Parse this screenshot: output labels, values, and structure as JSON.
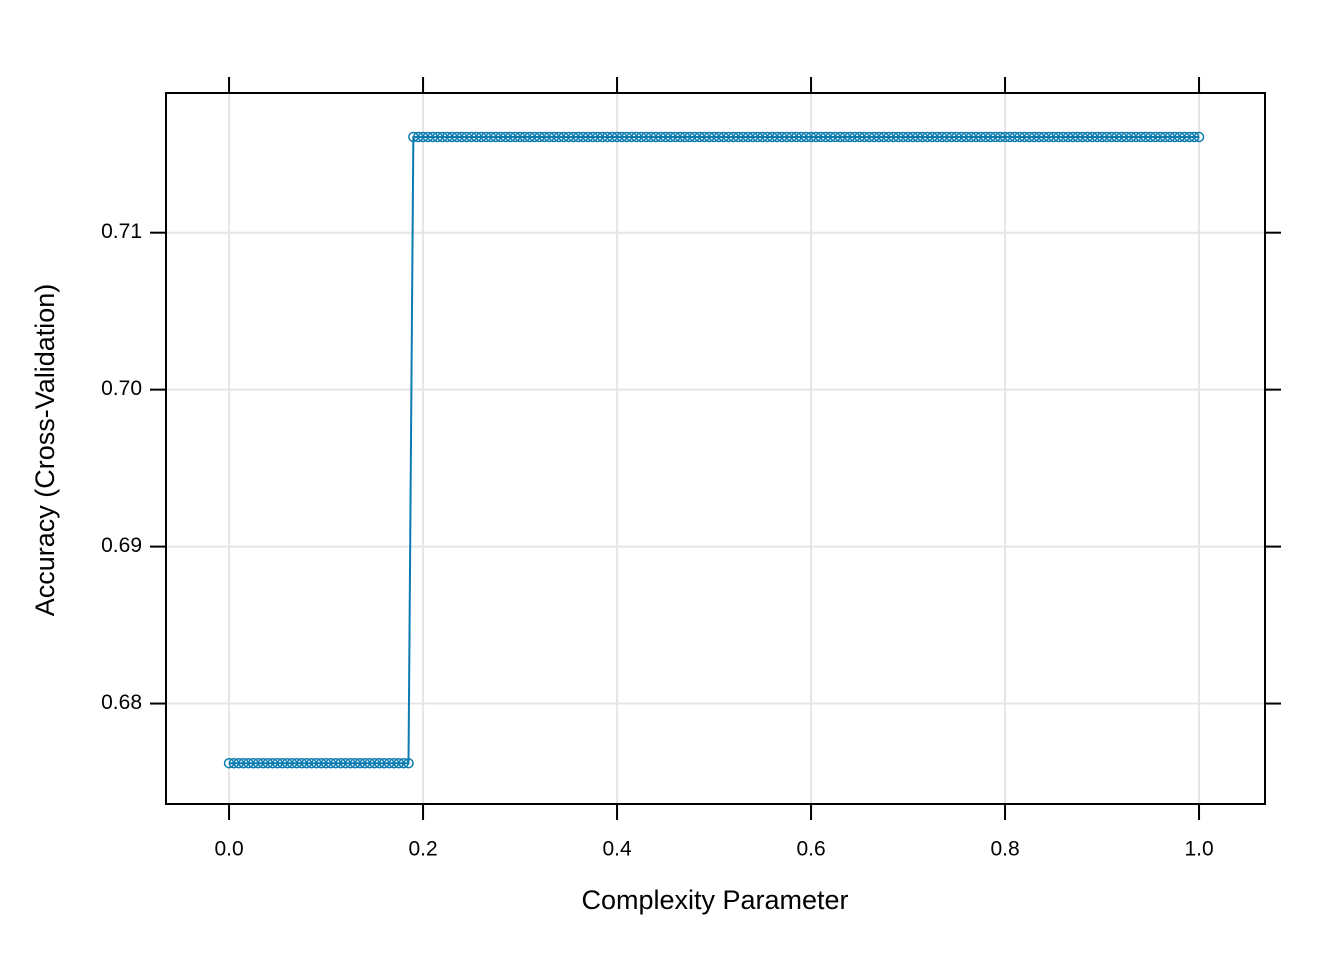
{
  "chart_data": {
    "type": "line",
    "x_label": "Complexity Parameter",
    "y_label": "Accuracy (Cross-Validation)",
    "xlim": [
      -0.065,
      1.068
    ],
    "ylim": [
      0.6736,
      0.7189
    ],
    "xticks": [
      {
        "value": 0,
        "label": "0.0"
      },
      0.2,
      0.4,
      0.6,
      0.8,
      {
        "value": 1,
        "label": "1.0"
      }
    ],
    "yticks": [
      0.68,
      0.69,
      {
        "value": 0.7,
        "label": "0.70"
      },
      0.71
    ],
    "grid": true,
    "series": [
      {
        "color": "#0c7bb0",
        "x": [
          0,
          0.005,
          0.01,
          0.015,
          0.02,
          0.025,
          0.03,
          0.035,
          0.04,
          0.045,
          0.05,
          0.055,
          0.06,
          0.065,
          0.07,
          0.075,
          0.08,
          0.085,
          0.09,
          0.095,
          0.1,
          0.105,
          0.11,
          0.115,
          0.12,
          0.125,
          0.13,
          0.135,
          0.14,
          0.145,
          0.15,
          0.155,
          0.16,
          0.165,
          0.17,
          0.175,
          0.18,
          0.185,
          0.19,
          0.195,
          0.2,
          0.205,
          0.21,
          0.215,
          0.22,
          0.225,
          0.23,
          0.235,
          0.24,
          0.245,
          0.25,
          0.255,
          0.26,
          0.265,
          0.27,
          0.275,
          0.28,
          0.285,
          0.29,
          0.295,
          0.3,
          0.305,
          0.31,
          0.315,
          0.32,
          0.325,
          0.33,
          0.335,
          0.34,
          0.345,
          0.35,
          0.355,
          0.36,
          0.365,
          0.37,
          0.375,
          0.38,
          0.385,
          0.39,
          0.395,
          0.4,
          0.405,
          0.41,
          0.415,
          0.42,
          0.425,
          0.43,
          0.435,
          0.44,
          0.445,
          0.45,
          0.455,
          0.46,
          0.465,
          0.47,
          0.475,
          0.48,
          0.485,
          0.49,
          0.495,
          0.5,
          0.505,
          0.51,
          0.515,
          0.52,
          0.525,
          0.53,
          0.535,
          0.54,
          0.545,
          0.55,
          0.555,
          0.56,
          0.565,
          0.57,
          0.575,
          0.58,
          0.585,
          0.59,
          0.595,
          0.6,
          0.605,
          0.61,
          0.615,
          0.62,
          0.625,
          0.63,
          0.635,
          0.64,
          0.645,
          0.65,
          0.655,
          0.66,
          0.665,
          0.67,
          0.675,
          0.68,
          0.685,
          0.69,
          0.695,
          0.7,
          0.705,
          0.71,
          0.715,
          0.72,
          0.725,
          0.73,
          0.735,
          0.74,
          0.745,
          0.75,
          0.755,
          0.76,
          0.765,
          0.77,
          0.775,
          0.78,
          0.785,
          0.79,
          0.795,
          0.8,
          0.805,
          0.81,
          0.815,
          0.82,
          0.825,
          0.83,
          0.835,
          0.84,
          0.845,
          0.85,
          0.855,
          0.86,
          0.865,
          0.87,
          0.875,
          0.88,
          0.885,
          0.89,
          0.895,
          0.9,
          0.905,
          0.91,
          0.915,
          0.92,
          0.925,
          0.93,
          0.935,
          0.94,
          0.945,
          0.95,
          0.955,
          0.96,
          0.965,
          0.97,
          0.975,
          0.98,
          0.985,
          0.99,
          0.995,
          1
        ],
        "values": [
          0.6762,
          0.6762,
          0.6762,
          0.6762,
          0.6762,
          0.6762,
          0.6762,
          0.6762,
          0.6762,
          0.6762,
          0.6762,
          0.6762,
          0.6762,
          0.6762,
          0.6762,
          0.6762,
          0.6762,
          0.6762,
          0.6762,
          0.6762,
          0.6762,
          0.6762,
          0.6762,
          0.6762,
          0.6762,
          0.6762,
          0.6762,
          0.6762,
          0.6762,
          0.6762,
          0.6762,
          0.6762,
          0.6762,
          0.6762,
          0.6762,
          0.6762,
          0.6762,
          0.6762,
          0.7161,
          0.7161,
          0.7161,
          0.7161,
          0.7161,
          0.7161,
          0.7161,
          0.7161,
          0.7161,
          0.7161,
          0.7161,
          0.7161,
          0.7161,
          0.7161,
          0.7161,
          0.7161,
          0.7161,
          0.7161,
          0.7161,
          0.7161,
          0.7161,
          0.7161,
          0.7161,
          0.7161,
          0.7161,
          0.7161,
          0.7161,
          0.7161,
          0.7161,
          0.7161,
          0.7161,
          0.7161,
          0.7161,
          0.7161,
          0.7161,
          0.7161,
          0.7161,
          0.7161,
          0.7161,
          0.7161,
          0.7161,
          0.7161,
          0.7161,
          0.7161,
          0.7161,
          0.7161,
          0.7161,
          0.7161,
          0.7161,
          0.7161,
          0.7161,
          0.7161,
          0.7161,
          0.7161,
          0.7161,
          0.7161,
          0.7161,
          0.7161,
          0.7161,
          0.7161,
          0.7161,
          0.7161,
          0.7161,
          0.7161,
          0.7161,
          0.7161,
          0.7161,
          0.7161,
          0.7161,
          0.7161,
          0.7161,
          0.7161,
          0.7161,
          0.7161,
          0.7161,
          0.7161,
          0.7161,
          0.7161,
          0.7161,
          0.7161,
          0.7161,
          0.7161,
          0.7161,
          0.7161,
          0.7161,
          0.7161,
          0.7161,
          0.7161,
          0.7161,
          0.7161,
          0.7161,
          0.7161,
          0.7161,
          0.7161,
          0.7161,
          0.7161,
          0.7161,
          0.7161,
          0.7161,
          0.7161,
          0.7161,
          0.7161,
          0.7161,
          0.7161,
          0.7161,
          0.7161,
          0.7161,
          0.7161,
          0.7161,
          0.7161,
          0.7161,
          0.7161,
          0.7161,
          0.7161,
          0.7161,
          0.7161,
          0.7161,
          0.7161,
          0.7161,
          0.7161,
          0.7161,
          0.7161,
          0.7161,
          0.7161,
          0.7161,
          0.7161,
          0.7161,
          0.7161,
          0.7161,
          0.7161,
          0.7161,
          0.7161,
          0.7161,
          0.7161,
          0.7161,
          0.7161,
          0.7161,
          0.7161,
          0.7161,
          0.7161,
          0.7161,
          0.7161,
          0.7161,
          0.7161,
          0.7161,
          0.7161,
          0.7161,
          0.7161,
          0.7161,
          0.7161,
          0.7161,
          0.7161,
          0.7161,
          0.7161,
          0.7161,
          0.7161,
          0.7161,
          0.7161,
          0.7161,
          0.7161,
          0.7161,
          0.7161,
          0.7161
        ]
      }
    ]
  }
}
